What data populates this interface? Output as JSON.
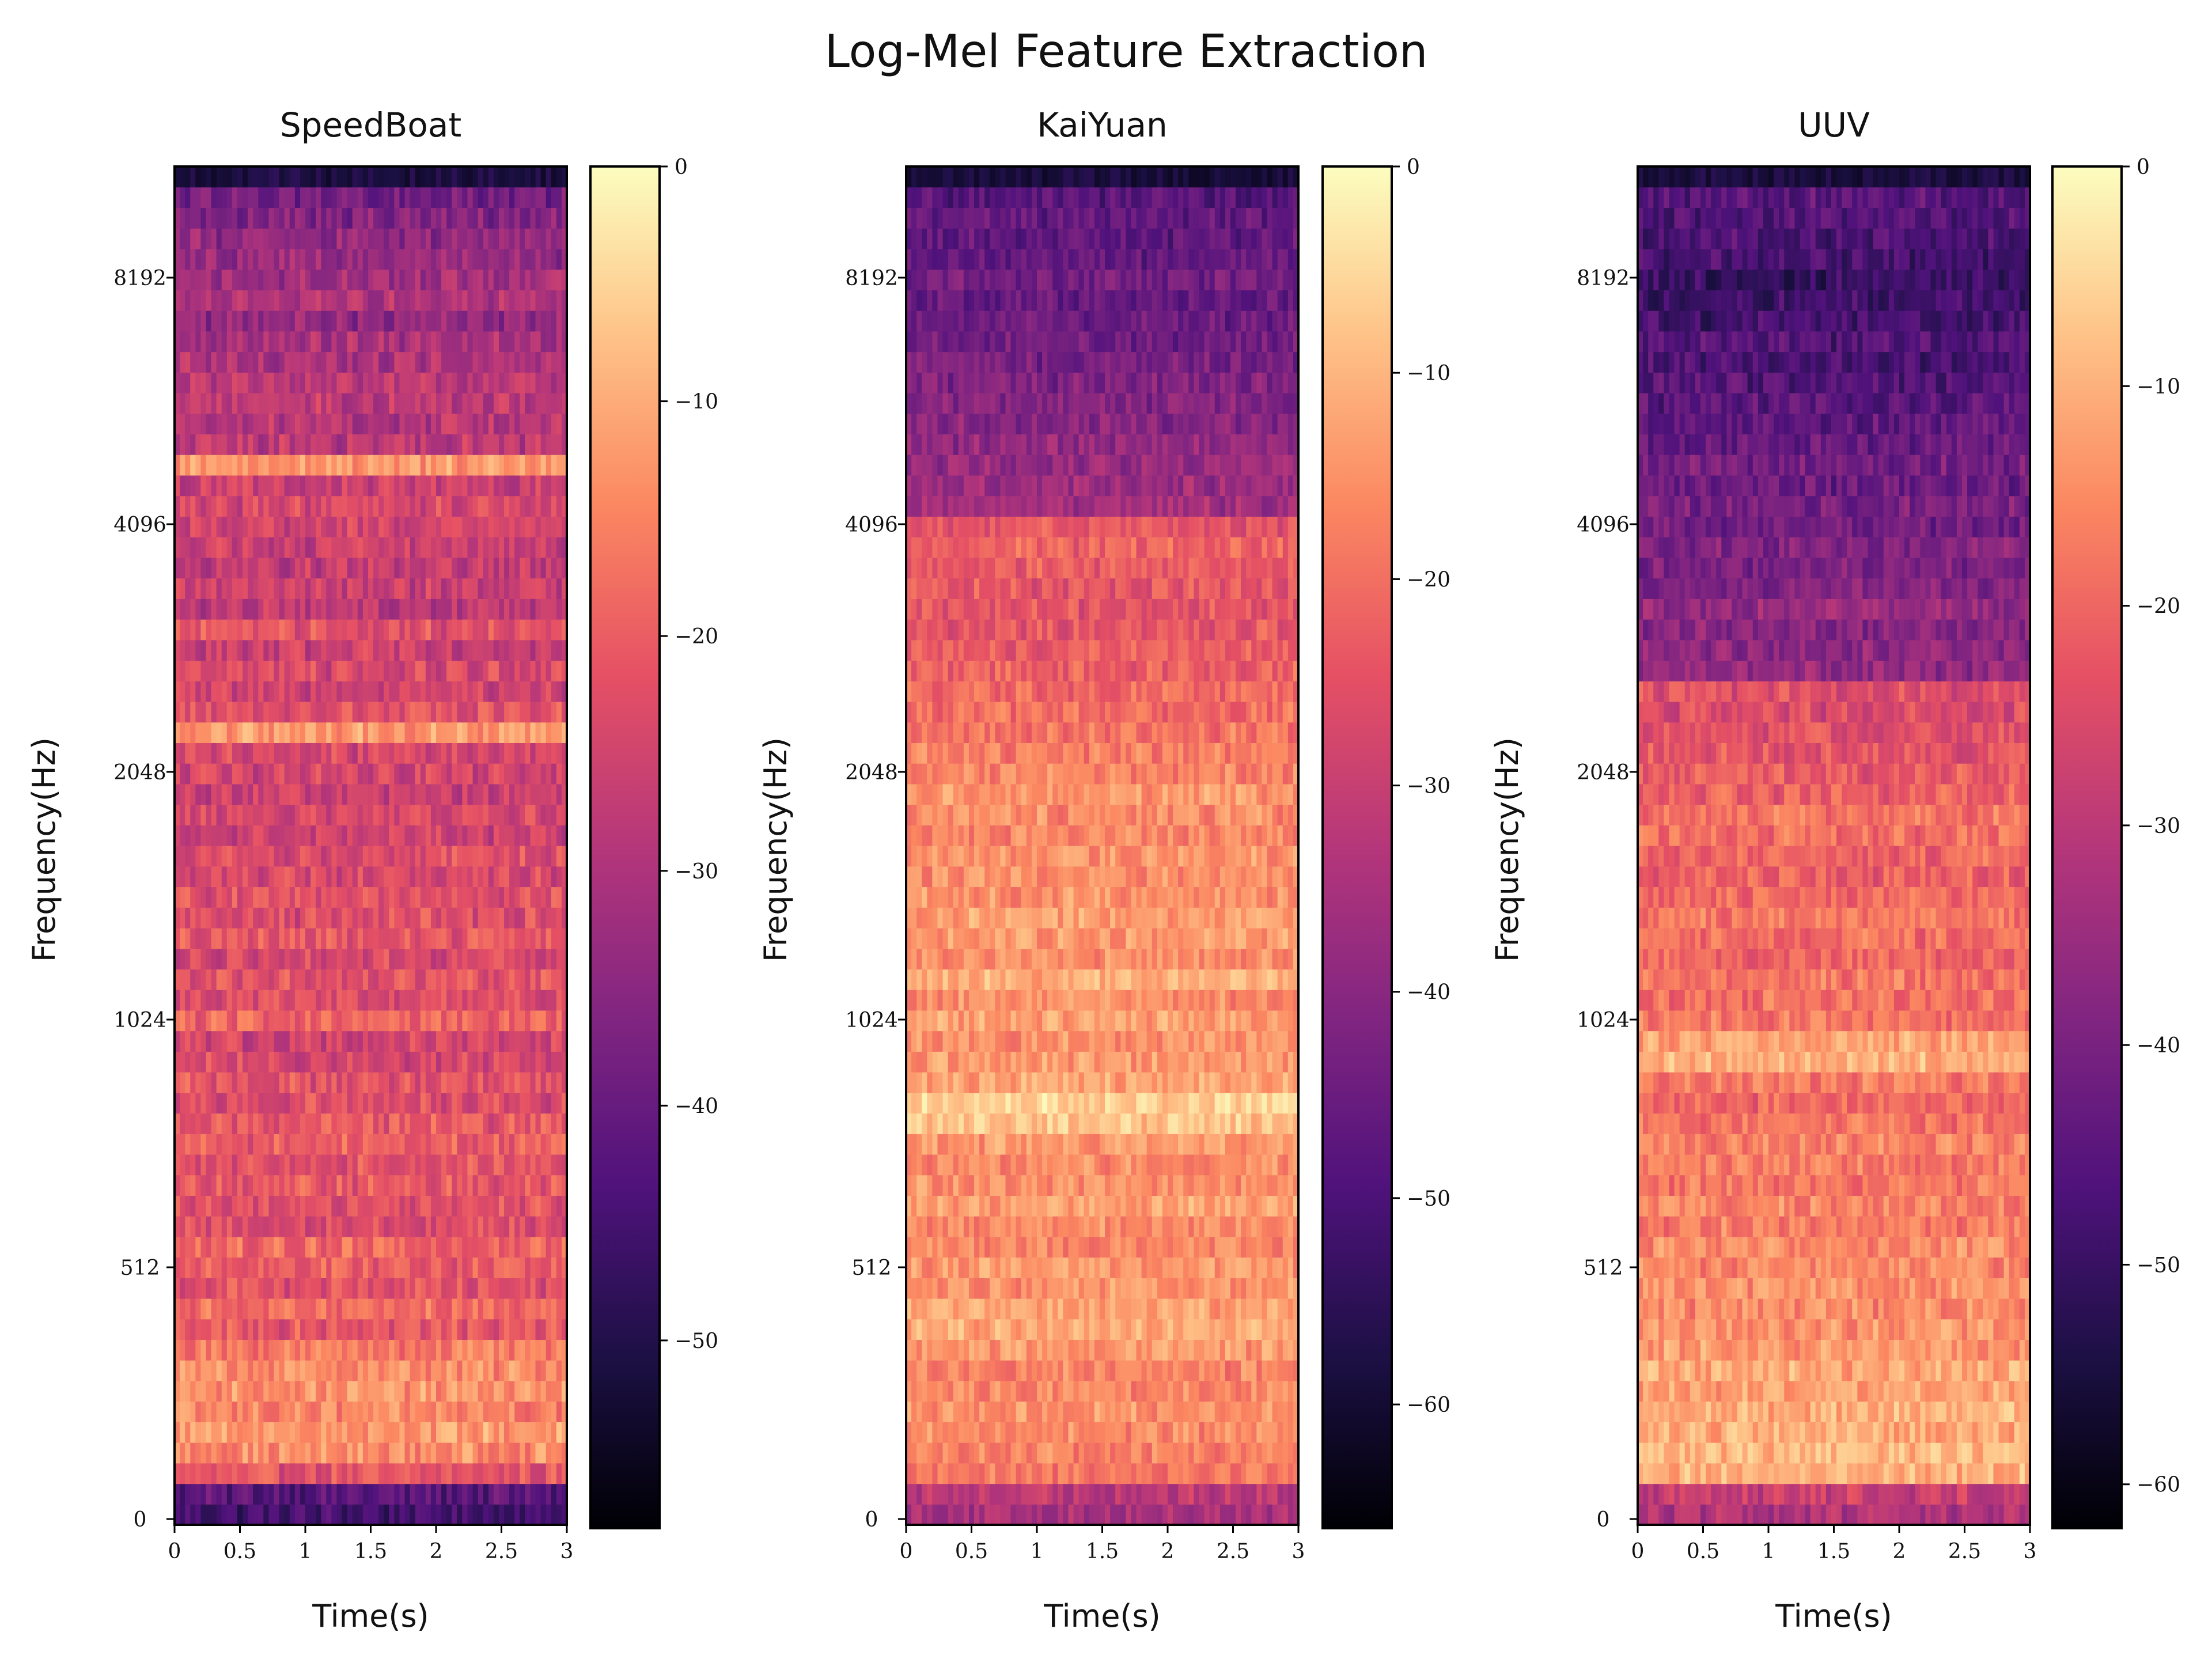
{
  "figure_title": "Log-Mel Feature Extraction",
  "colormap": {
    "name": "magma",
    "stops": [
      "#000004",
      "#1c1044",
      "#4f127b",
      "#812581",
      "#b5367a",
      "#e55064",
      "#fb8761",
      "#fec287",
      "#fcfdbf"
    ]
  },
  "chart_data": [
    {
      "type": "heatmap",
      "title": "SpeedBoat",
      "xlabel": "Time(s)",
      "ylabel": "Frequency(Hz)",
      "xlim": [
        0,
        3
      ],
      "x_ticks": [
        "0",
        "0.5",
        "1",
        "1.5",
        "2",
        "2.5",
        "3"
      ],
      "y_ticks": [
        "0",
        "512",
        "1024",
        "2048",
        "4096",
        "8192"
      ],
      "colorbar_range_db": [
        -58,
        0
      ],
      "colorbar_ticks": [
        "0",
        "-10",
        "-20",
        "-30",
        "-40",
        "-50"
      ],
      "frequency_profile_db": [
        -45,
        -42,
        -22,
        -14,
        -12,
        -15,
        -13,
        -14,
        -16,
        -21,
        -18,
        -22,
        -20,
        -19,
        -23,
        -22,
        -21,
        -22,
        -20,
        -21,
        -23,
        -22,
        -24,
        -25,
        -19,
        -23,
        -22,
        -24,
        -21,
        -23,
        -22,
        -24,
        -23,
        -25,
        -24,
        -26,
        -25,
        -24,
        -12,
        -22,
        -25,
        -24,
        -26,
        -22,
        -28,
        -26,
        -27,
        -26,
        -25,
        -24,
        -26,
        -12,
        -28,
        -29,
        -27,
        -28,
        -30,
        -31,
        -34,
        -30,
        -32,
        -33,
        -34,
        -36,
        -38,
        -60
      ],
      "strong_bands_db": [
        -12,
        -12,
        -13,
        -14
      ]
    },
    {
      "type": "heatmap",
      "title": "KaiYuan",
      "xlabel": "Time(s)",
      "ylabel": "Frequency(Hz)",
      "xlim": [
        0,
        3
      ],
      "x_ticks": [
        "0",
        "0.5",
        "1",
        "1.5",
        "2",
        "2.5",
        "3"
      ],
      "y_ticks": [
        "0",
        "512",
        "1024",
        "2048",
        "4096",
        "8192"
      ],
      "colorbar_range_db": [
        -66,
        0
      ],
      "colorbar_ticks": [
        "0",
        "-10",
        "-20",
        "-30",
        "-40",
        "-50",
        "-60"
      ],
      "frequency_profile_db": [
        -35,
        -32,
        -18,
        -17,
        -16,
        -15,
        -16,
        -17,
        -14,
        -12,
        -13,
        -15,
        -14,
        -17,
        -16,
        -13,
        -15,
        -16,
        -14,
        -8,
        -6,
        -12,
        -14,
        -15,
        -13,
        -16,
        -11,
        -15,
        -14,
        -13,
        -15,
        -16,
        -15,
        -17,
        -16,
        -14,
        -17,
        -18,
        -19,
        -20,
        -21,
        -22,
        -23,
        -24,
        -25,
        -24,
        -23,
        -22,
        -24,
        -36,
        -37,
        -38,
        -39,
        -40,
        -41,
        -42,
        -43,
        -44,
        -45,
        -46,
        -44,
        -46,
        -47,
        -46,
        -48,
        -60
      ],
      "strong_bands_db": [
        -6,
        -8,
        -10,
        -12
      ]
    },
    {
      "type": "heatmap",
      "title": "UUV",
      "xlabel": "Time(s)",
      "ylabel": "Frequency(Hz)",
      "xlim": [
        0,
        3
      ],
      "x_ticks": [
        "0",
        "0.5",
        "1",
        "1.5",
        "2",
        "2.5",
        "3"
      ],
      "y_ticks": [
        "0",
        "512",
        "1024",
        "2048",
        "4096",
        "8192"
      ],
      "colorbar_range_db": [
        -62,
        0
      ],
      "colorbar_ticks": [
        "0",
        "-10",
        "-20",
        "-30",
        "-40",
        "-50",
        "-60"
      ],
      "frequency_profile_db": [
        -32,
        -28,
        -10,
        -9,
        -11,
        -10,
        -12,
        -11,
        -13,
        -14,
        -15,
        -14,
        -16,
        -15,
        -17,
        -16,
        -18,
        -17,
        -16,
        -18,
        -20,
        -17,
        -10,
        -12,
        -18,
        -19,
        -18,
        -20,
        -19,
        -18,
        -20,
        -21,
        -20,
        -19,
        -18,
        -21,
        -22,
        -23,
        -24,
        -25,
        -24,
        -36,
        -37,
        -38,
        -36,
        -39,
        -40,
        -39,
        -41,
        -40,
        -42,
        -41,
        -43,
        -44,
        -45,
        -46,
        -47,
        -46,
        -48,
        -49,
        -50,
        -48,
        -47,
        -46,
        -45,
        -58
      ],
      "strong_bands_db": [
        -10,
        -12,
        -14
      ]
    }
  ]
}
